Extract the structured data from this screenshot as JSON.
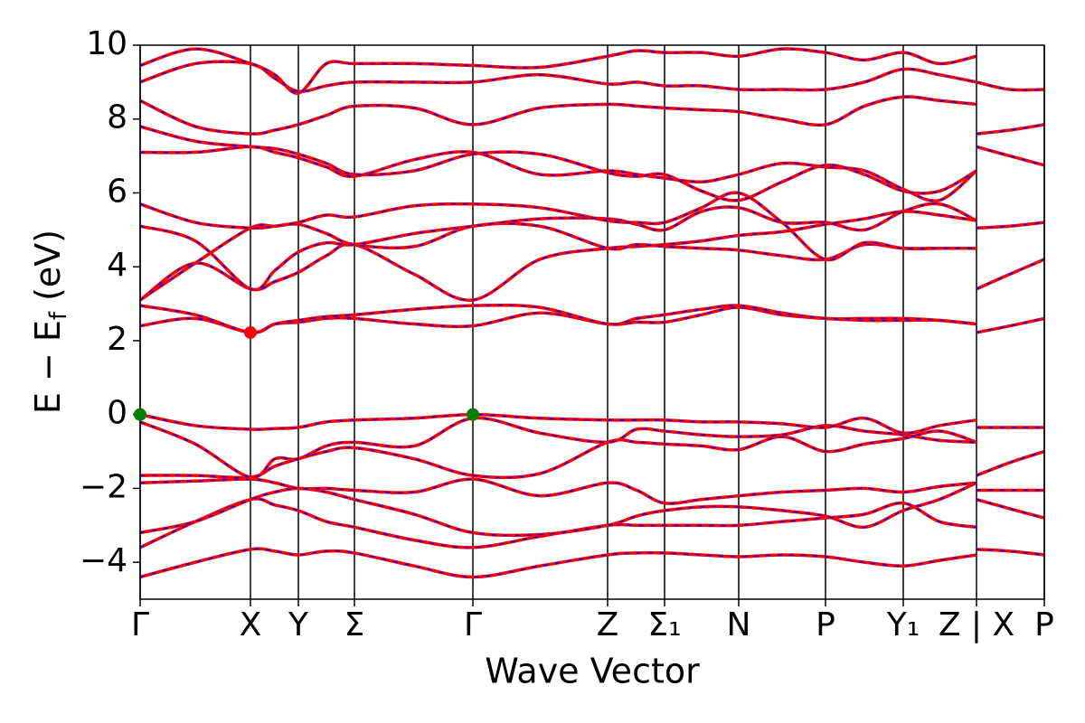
{
  "chart_data": {
    "type": "line",
    "xlabel": "Wave Vector",
    "ylabel": {
      "main": "E − E",
      "sub": "f",
      "unit": "(eV)"
    },
    "xlim": [
      0,
      10
    ],
    "ylim": [
      -5,
      10
    ],
    "yticks": [
      {
        "value": -4,
        "label": "−4"
      },
      {
        "value": -2,
        "label": "−2"
      },
      0,
      2,
      4,
      6,
      8,
      10
    ],
    "xticks": [
      {
        "value": 0,
        "label": "Γ"
      },
      {
        "value": 1.22,
        "label": "X"
      },
      {
        "value": 1.75,
        "label": "Y"
      },
      {
        "value": 2.37,
        "label": "Σ"
      },
      {
        "value": 3.68,
        "label": "Γ"
      },
      {
        "value": 5.17,
        "label": "Z"
      },
      {
        "value": 5.8,
        "label": "Σ₁"
      },
      {
        "value": 6.62,
        "label": "N"
      },
      {
        "value": 7.58,
        "label": "P"
      },
      {
        "value": 8.44,
        "label": "Y₁"
      },
      {
        "value": 9.25,
        "label": "Z | X"
      },
      {
        "value": 10,
        "label": "P"
      }
    ],
    "dash_color": "#0000ff",
    "x": [
      0,
      0.61,
      1.22,
      1.49,
      1.75,
      2.06,
      2.37,
      3.03,
      3.68,
      4.42,
      5.17,
      5.49,
      5.8,
      6.21,
      6.62,
      7.1,
      7.58,
      8.01,
      8.44,
      8.84,
      9.25,
      9.25,
      9.25,
      9.62,
      10
    ],
    "series": [
      {
        "color": "#ff0000",
        "values": [
          -4.4,
          -4.0,
          -3.65,
          -3.7,
          -3.8,
          -3.7,
          -3.75,
          -4.1,
          -4.4,
          -4.1,
          -3.8,
          -3.75,
          -3.75,
          -3.8,
          -3.85,
          -3.8,
          -3.85,
          -4.0,
          -4.1,
          -3.95,
          -3.8,
          null,
          -3.65,
          -3.7,
          -3.8
        ]
      },
      {
        "color": "#ff0000",
        "values": [
          -3.6,
          -2.9,
          -2.3,
          -2.45,
          -2.6,
          -2.9,
          -3.05,
          -3.4,
          -3.6,
          -3.3,
          -3.0,
          -3.0,
          -3.0,
          -3.0,
          -3.0,
          -2.9,
          -2.8,
          -2.7,
          -2.4,
          -2.9,
          -3.05,
          null,
          null,
          null,
          null
        ]
      },
      {
        "color": "#ff0000",
        "values": [
          -3.2,
          -2.9,
          -2.3,
          -2.1,
          -2.0,
          -2.1,
          -2.3,
          -2.7,
          -3.2,
          -3.25,
          -3.0,
          -2.75,
          -2.6,
          -2.5,
          -2.5,
          -2.6,
          -2.75,
          -3.05,
          -2.6,
          -2.3,
          -1.85,
          null,
          -2.3,
          -2.55,
          -2.8
        ]
      },
      {
        "color": "#ff0000",
        "values": [
          -1.85,
          -1.8,
          -1.75,
          -1.85,
          -2.0,
          -2.0,
          -2.05,
          -2.1,
          -1.75,
          -2.2,
          -1.85,
          -2.05,
          -2.4,
          -2.3,
          -2.2,
          -2.1,
          -2.05,
          -2.0,
          -2.1,
          -1.95,
          -1.85,
          null,
          -2.05,
          -2.05,
          -2.05
        ]
      },
      {
        "color": "#ff0000",
        "values": [
          -1.65,
          -1.65,
          -1.7,
          -1.4,
          -1.2,
          -1.0,
          -0.9,
          -1.2,
          -1.65,
          -1.6,
          -0.75,
          -0.75,
          -0.8,
          -0.85,
          -0.95,
          -0.6,
          -1.0,
          -0.8,
          -0.65,
          -0.45,
          -0.75,
          null,
          -1.65,
          -1.3,
          -1.0
        ]
      },
      {
        "color": "#ff0000",
        "values": [
          -0.2,
          -0.8,
          -1.7,
          -1.2,
          -1.2,
          -0.85,
          -0.75,
          -0.85,
          -0.1,
          -0.5,
          -0.75,
          -0.4,
          -0.45,
          -0.55,
          -0.6,
          -0.55,
          -0.3,
          -0.45,
          -0.55,
          -0.7,
          -0.75,
          null,
          null,
          null,
          null
        ]
      },
      {
        "color": "#ff0000",
        "values": [
          0,
          -0.3,
          -0.4,
          -0.38,
          -0.35,
          -0.2,
          -0.15,
          -0.1,
          0,
          -0.1,
          -0.15,
          -0.15,
          -0.15,
          -0.2,
          -0.2,
          -0.25,
          -0.35,
          -0.1,
          -0.5,
          -0.3,
          -0.15,
          null,
          -0.35,
          -0.35,
          -0.35
        ]
      },
      {
        "color": "#ff0000",
        "values": [
          2.4,
          2.6,
          2.22,
          2.45,
          2.5,
          2.6,
          2.6,
          2.45,
          2.4,
          2.75,
          2.45,
          2.5,
          2.5,
          2.7,
          2.9,
          2.7,
          2.6,
          2.55,
          2.55,
          2.55,
          2.45,
          null,
          2.22,
          2.4,
          2.6
        ]
      },
      {
        "color": "#ff0000",
        "values": [
          2.95,
          2.7,
          2.22,
          2.45,
          2.55,
          2.65,
          2.7,
          2.85,
          2.95,
          2.9,
          2.45,
          2.6,
          2.7,
          2.85,
          2.95,
          2.75,
          2.6,
          2.6,
          2.6,
          2.55,
          2.45,
          null,
          3.4,
          3.8,
          4.2
        ]
      },
      {
        "color": "#ff0000",
        "values": [
          3.1,
          4.1,
          3.4,
          3.6,
          3.85,
          4.3,
          4.6,
          3.8,
          3.1,
          4.2,
          4.5,
          4.55,
          4.6,
          4.7,
          4.85,
          4.95,
          5.15,
          5.3,
          5.5,
          5.4,
          5.25,
          null,
          5.05,
          5.1,
          5.2
        ]
      },
      {
        "color": "#ff0000",
        "values": [
          3.1,
          4.1,
          5.05,
          5.1,
          5.15,
          4.9,
          4.6,
          4.55,
          5.1,
          5.1,
          4.5,
          4.6,
          4.55,
          4.5,
          4.45,
          4.3,
          4.2,
          4.6,
          4.5,
          4.5,
          4.5,
          null,
          null,
          null,
          null
        ]
      },
      {
        "color": "#ff0000",
        "values": [
          5.1,
          4.7,
          3.4,
          3.9,
          4.4,
          4.65,
          4.6,
          4.9,
          5.1,
          5.3,
          5.3,
          5.15,
          5.0,
          5.5,
          5.6,
          5.2,
          5.2,
          5.0,
          5.5,
          5.7,
          5.25,
          null,
          null,
          null,
          null
        ]
      },
      {
        "color": "#ff0000",
        "values": [
          5.7,
          5.2,
          5.05,
          5.1,
          5.2,
          5.4,
          5.35,
          5.65,
          5.7,
          5.6,
          5.25,
          5.2,
          5.2,
          5.6,
          6.0,
          5.2,
          4.2,
          4.65,
          4.5,
          4.5,
          4.5,
          null,
          null,
          null,
          null
        ]
      },
      {
        "color": "#ff0000",
        "values": [
          7.1,
          7.1,
          7.25,
          7.1,
          6.95,
          6.7,
          6.45,
          6.9,
          7.1,
          6.5,
          6.6,
          6.5,
          6.4,
          6.3,
          6.5,
          6.8,
          6.7,
          6.6,
          6.1,
          5.8,
          6.6,
          null,
          7.25,
          7.0,
          6.75
        ]
      },
      {
        "color": "#ff0000",
        "values": [
          7.8,
          7.4,
          7.25,
          7.2,
          7.05,
          6.8,
          6.5,
          6.6,
          7.05,
          7.05,
          6.55,
          6.45,
          6.5,
          6.05,
          5.8,
          6.3,
          6.75,
          6.5,
          6.05,
          6.05,
          6.6,
          null,
          7.6,
          7.7,
          7.85
        ]
      },
      {
        "color": "#ff0000",
        "values": [
          8.5,
          7.8,
          7.6,
          7.7,
          7.85,
          8.1,
          8.35,
          8.3,
          7.85,
          8.3,
          8.4,
          8.35,
          8.3,
          8.25,
          8.2,
          8.0,
          7.85,
          8.35,
          8.6,
          8.5,
          8.4,
          null,
          null,
          null,
          null
        ]
      },
      {
        "color": "#ff0000",
        "values": [
          9.0,
          9.5,
          9.5,
          9.1,
          8.75,
          8.9,
          9.0,
          9.0,
          9.0,
          9.2,
          8.95,
          9.0,
          8.9,
          8.9,
          8.8,
          8.8,
          8.8,
          9.0,
          9.35,
          9.2,
          9.0,
          null,
          9.0,
          8.8,
          8.8
        ]
      },
      {
        "color": "#ff0000",
        "values": [
          9.45,
          9.9,
          9.5,
          9.2,
          8.7,
          9.5,
          9.5,
          9.5,
          9.45,
          9.4,
          9.7,
          9.85,
          9.8,
          9.8,
          9.7,
          9.9,
          9.8,
          9.6,
          9.8,
          9.5,
          9.7,
          null,
          null,
          null,
          null
        ]
      }
    ],
    "markers": [
      {
        "x": 1.22,
        "y": 2.22,
        "color": "#ff0000"
      },
      {
        "x": 0,
        "y": 0,
        "color": "#008000"
      },
      {
        "x": 3.68,
        "y": 0,
        "color": "#008000"
      }
    ]
  }
}
